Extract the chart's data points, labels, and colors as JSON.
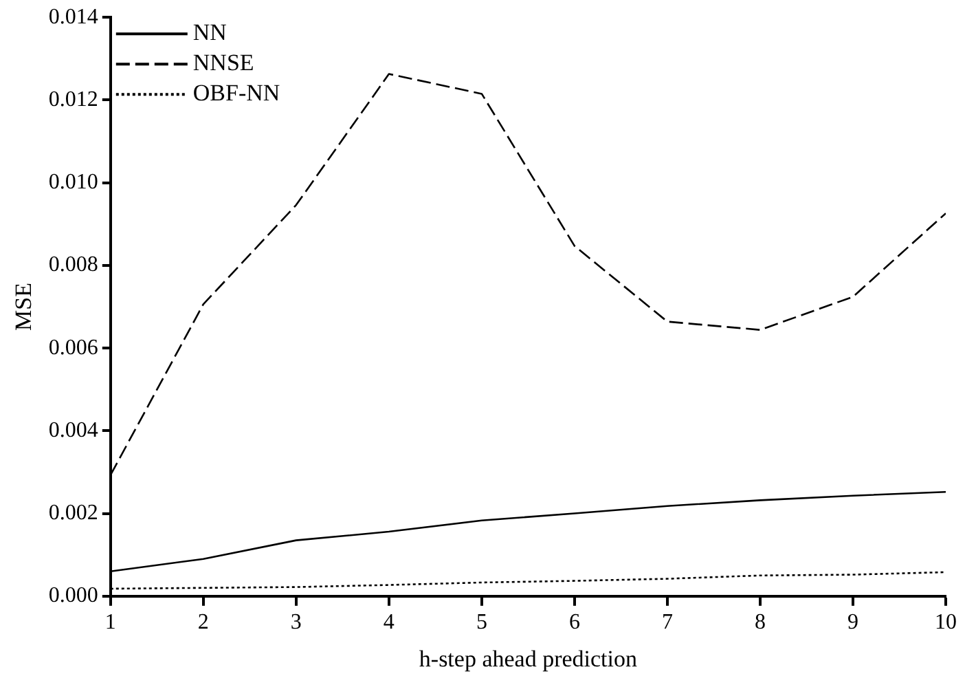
{
  "chart_data": {
    "type": "line",
    "xlabel": "h-step ahead prediction",
    "ylabel": "MSE",
    "x": [
      1,
      2,
      3,
      4,
      5,
      6,
      7,
      8,
      9,
      10
    ],
    "series": [
      {
        "name": "NN",
        "color": "#000000",
        "line_style": "solid",
        "values": [
          0.0006,
          0.0009,
          0.00135,
          0.00156,
          0.00183,
          0.002,
          0.00218,
          0.00232,
          0.00243,
          0.00252
        ]
      },
      {
        "name": "NNSE",
        "color": "#000000",
        "line_style": "dashed",
        "values": [
          0.00293,
          0.00706,
          0.00946,
          0.01263,
          0.01215,
          0.00847,
          0.00664,
          0.00644,
          0.00724,
          0.00926
        ]
      },
      {
        "name": "OBF-NN",
        "color": "#000000",
        "line_style": "dotted",
        "values": [
          0.00018,
          0.0002,
          0.00022,
          0.00027,
          0.00033,
          0.00037,
          0.00042,
          0.0005,
          0.00052,
          0.00058
        ]
      }
    ],
    "xlim": [
      1,
      10
    ],
    "xticks": [
      1,
      2,
      3,
      4,
      5,
      6,
      7,
      8,
      9,
      10
    ],
    "ylim": [
      0,
      0.014
    ],
    "yticks": [
      {
        "value": 0,
        "label": "0.000"
      },
      {
        "value": 0.002,
        "label": "0.002"
      },
      {
        "value": 0.004,
        "label": "0.004"
      },
      {
        "value": 0.006,
        "label": "0.006"
      },
      {
        "value": 0.008,
        "label": "0.008"
      },
      {
        "value": 0.01,
        "label": "0.010"
      },
      {
        "value": 0.012,
        "label": "0.012"
      },
      {
        "value": 0.014,
        "label": "0.014"
      }
    ],
    "grid": false,
    "legend": "top left",
    "marker": "none"
  }
}
